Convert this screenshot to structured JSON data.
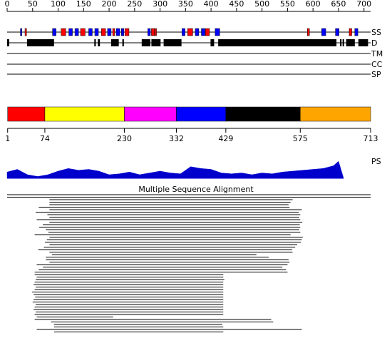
{
  "ruler": {
    "lim": [
      0,
      713
    ],
    "ticks": [
      0,
      50,
      100,
      150,
      200,
      250,
      300,
      350,
      400,
      450,
      500,
      550,
      600,
      650,
      700
    ]
  },
  "tracks": [
    {
      "label": "SS"
    },
    {
      "label": "D"
    },
    {
      "label": "TM"
    },
    {
      "label": "CC"
    },
    {
      "label": "SP"
    }
  ],
  "secondary_structure": {
    "colors": {
      "H": "#ff0000",
      "E": "#0000ff"
    },
    "segments": [
      {
        "start": 26,
        "end": 29,
        "type": "E"
      },
      {
        "start": 35,
        "end": 38,
        "type": "H"
      },
      {
        "start": 89,
        "end": 96,
        "type": "E"
      },
      {
        "start": 106,
        "end": 115,
        "type": "H"
      },
      {
        "start": 121,
        "end": 128,
        "type": "E"
      },
      {
        "start": 133,
        "end": 140,
        "type": "E"
      },
      {
        "start": 144,
        "end": 153,
        "type": "H"
      },
      {
        "start": 160,
        "end": 167,
        "type": "E"
      },
      {
        "start": 172,
        "end": 179,
        "type": "E"
      },
      {
        "start": 185,
        "end": 193,
        "type": "H"
      },
      {
        "start": 197,
        "end": 204,
        "type": "E"
      },
      {
        "start": 207,
        "end": 211,
        "type": "H"
      },
      {
        "start": 214,
        "end": 221,
        "type": "E"
      },
      {
        "start": 224,
        "end": 229,
        "type": "E"
      },
      {
        "start": 231,
        "end": 239,
        "type": "H"
      },
      {
        "start": 276,
        "end": 281,
        "type": "E"
      },
      {
        "start": 283,
        "end": 289,
        "type": "H"
      },
      {
        "start": 290,
        "end": 293,
        "type": "H"
      },
      {
        "start": 343,
        "end": 349,
        "type": "E"
      },
      {
        "start": 354,
        "end": 364,
        "type": "H"
      },
      {
        "start": 369,
        "end": 376,
        "type": "E"
      },
      {
        "start": 381,
        "end": 388,
        "type": "E"
      },
      {
        "start": 389,
        "end": 397,
        "type": "H"
      },
      {
        "start": 408,
        "end": 417,
        "type": "E"
      },
      {
        "start": 589,
        "end": 593,
        "type": "H"
      },
      {
        "start": 617,
        "end": 625,
        "type": "E"
      },
      {
        "start": 644,
        "end": 651,
        "type": "E"
      },
      {
        "start": 671,
        "end": 676,
        "type": "H"
      },
      {
        "start": 682,
        "end": 688,
        "type": "E"
      }
    ]
  },
  "disorder": [
    [
      0,
      4
    ],
    [
      39,
      92
    ],
    [
      171,
      174
    ],
    [
      178,
      182
    ],
    [
      204,
      219
    ],
    [
      226,
      229
    ],
    [
      264,
      281
    ],
    [
      283,
      301
    ],
    [
      307,
      342
    ],
    [
      399,
      406
    ],
    [
      414,
      646
    ],
    [
      653,
      656
    ],
    [
      658,
      661
    ],
    [
      665,
      682
    ],
    [
      689,
      708
    ]
  ],
  "domains": {
    "boundaries": [
      1,
      74,
      230,
      332,
      429,
      575,
      713
    ],
    "colors": [
      "#ff0000",
      "#ffff00",
      "#ff00ff",
      "#0000ff",
      "#000000",
      "#ffa500"
    ]
  },
  "ps": {
    "label": "PS",
    "color": "#0000cc",
    "ylim": [
      0,
      1
    ],
    "x": [
      0,
      20,
      40,
      60,
      80,
      100,
      120,
      140,
      160,
      180,
      200,
      220,
      240,
      260,
      280,
      300,
      320,
      340,
      360,
      380,
      400,
      420,
      440,
      460,
      480,
      500,
      520,
      540,
      560,
      580,
      600,
      620,
      640,
      650,
      660
    ],
    "values": [
      0.35,
      0.5,
      0.2,
      0.1,
      0.2,
      0.4,
      0.55,
      0.45,
      0.5,
      0.4,
      0.2,
      0.25,
      0.35,
      0.2,
      0.3,
      0.4,
      0.3,
      0.25,
      0.65,
      0.55,
      0.5,
      0.3,
      0.25,
      0.3,
      0.2,
      0.3,
      0.25,
      0.35,
      0.4,
      0.45,
      0.5,
      0.55,
      0.7,
      0.95,
      0
    ]
  },
  "alignment": {
    "title": "Multiple Sequence Alignment",
    "rows": [
      [
        0,
        713
      ],
      [
        0,
        713
      ],
      [
        83,
        560
      ],
      [
        83,
        556
      ],
      [
        83,
        552
      ],
      [
        62,
        554
      ],
      [
        83,
        578
      ],
      [
        56,
        572
      ],
      [
        79,
        575
      ],
      [
        83,
        573
      ],
      [
        58,
        575
      ],
      [
        83,
        579
      ],
      [
        70,
        574
      ],
      [
        63,
        575
      ],
      [
        76,
        573
      ],
      [
        81,
        575
      ],
      [
        54,
        556
      ],
      [
        83,
        580
      ],
      [
        78,
        578
      ],
      [
        74,
        576
      ],
      [
        83,
        569
      ],
      [
        72,
        565
      ],
      [
        61,
        559
      ],
      [
        83,
        560
      ],
      [
        88,
        489
      ],
      [
        76,
        513
      ],
      [
        76,
        552
      ],
      [
        83,
        554
      ],
      [
        58,
        550
      ],
      [
        70,
        540
      ],
      [
        62,
        547
      ],
      [
        54,
        550
      ],
      [
        54,
        424
      ],
      [
        58,
        424
      ],
      [
        56,
        426
      ],
      [
        54,
        424
      ],
      [
        52,
        424
      ],
      [
        56,
        424
      ],
      [
        54,
        424
      ],
      [
        49,
        424
      ],
      [
        52,
        424
      ],
      [
        55,
        424
      ],
      [
        52,
        424
      ],
      [
        50,
        424
      ],
      [
        56,
        424
      ],
      [
        54,
        424
      ],
      [
        52,
        424
      ],
      [
        56,
        424
      ],
      [
        54,
        424
      ],
      [
        58,
        208
      ],
      [
        54,
        518
      ],
      [
        86,
        522
      ],
      [
        92,
        422
      ],
      [
        92,
        424
      ],
      [
        58,
        578
      ],
      [
        92,
        424
      ]
    ]
  }
}
